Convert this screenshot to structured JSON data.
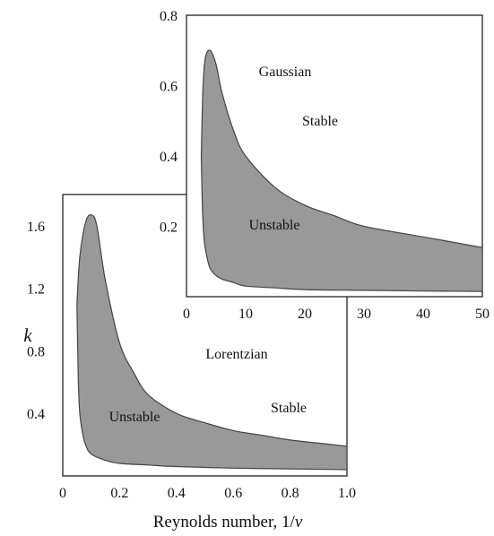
{
  "chart_data": [
    {
      "type": "area",
      "panel": "Lorentzian",
      "title": "",
      "xlabel": "Reynolds number, 1/",
      "xlabel_italic": "v",
      "ylabel": "k",
      "xlim": [
        0,
        1.0
      ],
      "ylim": [
        0,
        1.8
      ],
      "xticks": [
        "0",
        "0.2",
        "0.4",
        "0.6",
        "0.8",
        "1.0"
      ],
      "xtick_values": [
        0,
        0.2,
        0.4,
        0.6,
        0.8,
        1.0
      ],
      "yticks": [
        "0.4",
        "0.8",
        "1.2",
        "1.6"
      ],
      "ytick_values": [
        0.4,
        0.8,
        1.2,
        1.6
      ],
      "fill_color": "#999999",
      "edge_color": "#444444",
      "region_labels": {
        "panel": "Lorentzian",
        "stable": "Stable",
        "unstable": "Unstable"
      },
      "boundary": {
        "upper": {
          "x": [
            0.05,
            0.06,
            0.08,
            0.1,
            0.12,
            0.15,
            0.2,
            0.25,
            0.3,
            0.4,
            0.5,
            0.6,
            0.7,
            0.8,
            0.9,
            1.0
          ],
          "y": [
            1.1,
            1.4,
            1.62,
            1.67,
            1.6,
            1.25,
            0.85,
            0.66,
            0.52,
            0.4,
            0.34,
            0.29,
            0.26,
            0.23,
            0.21,
            0.19
          ]
        },
        "lower": {
          "x": [
            0.05,
            0.055,
            0.06,
            0.07,
            0.08,
            0.1,
            0.15,
            0.2,
            0.3,
            0.4,
            0.6,
            0.8,
            1.0
          ],
          "y": [
            1.1,
            0.6,
            0.4,
            0.27,
            0.2,
            0.14,
            0.1,
            0.08,
            0.07,
            0.06,
            0.05,
            0.045,
            0.04
          ]
        }
      }
    },
    {
      "type": "area",
      "panel": "Gaussian",
      "title": "",
      "xlim": [
        0,
        50
      ],
      "ylim": [
        0,
        0.8
      ],
      "xticks": [
        "0",
        "10",
        "20",
        "30",
        "40",
        "50"
      ],
      "xtick_values": [
        0,
        10,
        20,
        30,
        40,
        50
      ],
      "yticks": [
        "0.2",
        "0.4",
        "0.6",
        "0.8"
      ],
      "ytick_values": [
        0.2,
        0.4,
        0.6,
        0.8
      ],
      "fill_color": "#999999",
      "edge_color": "#444444",
      "region_labels": {
        "panel": "Gaussian",
        "stable": "Stable",
        "unstable": "Unstable"
      },
      "boundary": {
        "upper": {
          "x": [
            2.5,
            2.8,
            3.2,
            4.0,
            5.0,
            6.0,
            8.0,
            10.0,
            15.0,
            20.0,
            25.0,
            30.0,
            40.0,
            50.0
          ],
          "y": [
            0.4,
            0.6,
            0.68,
            0.7,
            0.66,
            0.58,
            0.47,
            0.4,
            0.31,
            0.26,
            0.23,
            0.2,
            0.17,
            0.14
          ]
        },
        "lower": {
          "x": [
            2.5,
            2.7,
            3.0,
            3.5,
            4.0,
            5.0,
            6.0,
            8.0,
            10.0,
            15.0,
            20.0,
            30.0,
            40.0,
            50.0
          ],
          "y": [
            0.4,
            0.25,
            0.16,
            0.11,
            0.08,
            0.06,
            0.05,
            0.04,
            0.03,
            0.025,
            0.02,
            0.018,
            0.016,
            0.015
          ]
        }
      }
    }
  ]
}
